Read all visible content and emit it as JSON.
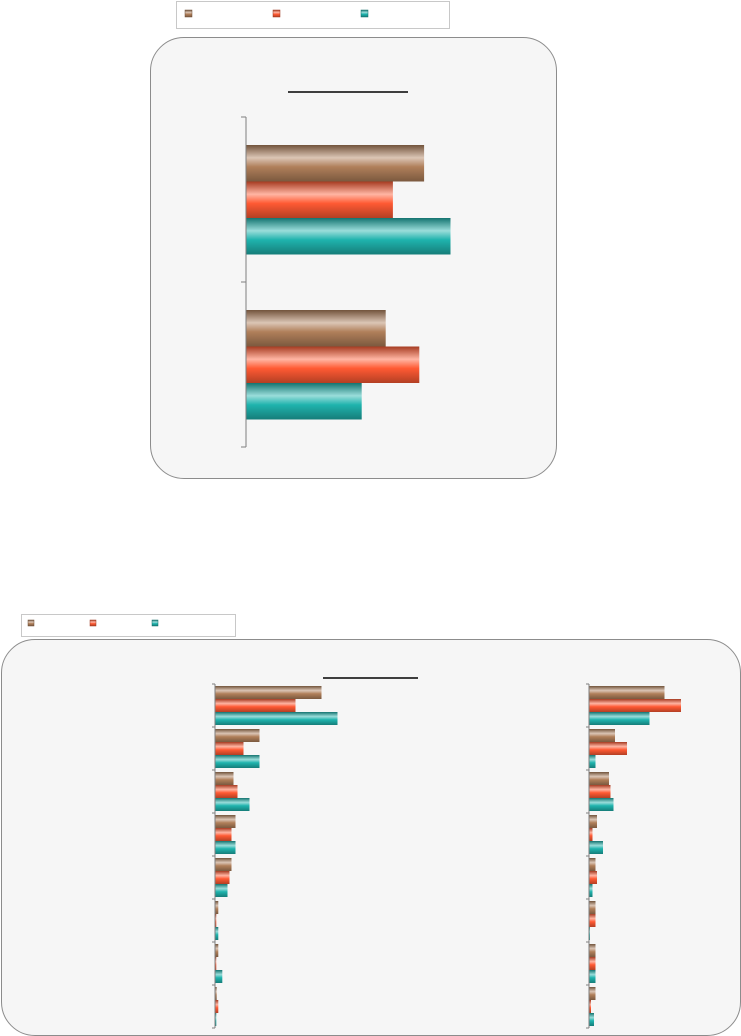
{
  "colors": {
    "series_1": "#b07f5a",
    "series_2": "#ff5a33",
    "series_3": "#1fb3ad"
  },
  "chart_data": [
    {
      "type": "bar",
      "orientation": "horizontal",
      "categories": [
        "",
        ""
      ],
      "series": [
        {
          "values": [
            74,
            58
          ]
        },
        {
          "values": [
            61,
            72
          ]
        },
        {
          "values": [
            85,
            48
          ]
        }
      ],
      "xlim": [
        0,
        100
      ],
      "grid": false,
      "legend": "top",
      "value_labels": false
    },
    {
      "type": "bar",
      "orientation": "horizontal",
      "panel": "left",
      "categories": [
        "",
        "",
        "",
        "",
        "",
        "",
        "",
        ""
      ],
      "series": [
        {
          "values": [
            26.5,
            11.0,
            4.5,
            5.0,
            4.0,
            0.7,
            0.7,
            0.3
          ]
        },
        {
          "values": [
            20.0,
            7.0,
            5.5,
            4.0,
            3.5,
            0.2,
            0.2,
            0.7
          ]
        },
        {
          "values": [
            30.5,
            11.0,
            8.5,
            5.0,
            3.0,
            0.7,
            1.7,
            0.2
          ]
        }
      ],
      "xlim": [
        0,
        100
      ],
      "grid": false,
      "legend": "top-left",
      "value_labels": false
    },
    {
      "type": "bar",
      "orientation": "horizontal",
      "panel": "right",
      "categories": [
        "",
        "",
        "",
        "",
        "",
        "",
        "",
        ""
      ],
      "series": [
        {
          "values": [
            50,
            17,
            13,
            5,
            4,
            4,
            4,
            4
          ]
        },
        {
          "values": [
            61,
            25,
            14,
            2,
            5,
            4,
            4,
            1
          ]
        },
        {
          "values": [
            40,
            4,
            16,
            9,
            2,
            0.3,
            4,
            3
          ]
        }
      ],
      "xlim": [
        0,
        100
      ],
      "grid": false,
      "legend": "top-left",
      "value_labels": false
    }
  ]
}
